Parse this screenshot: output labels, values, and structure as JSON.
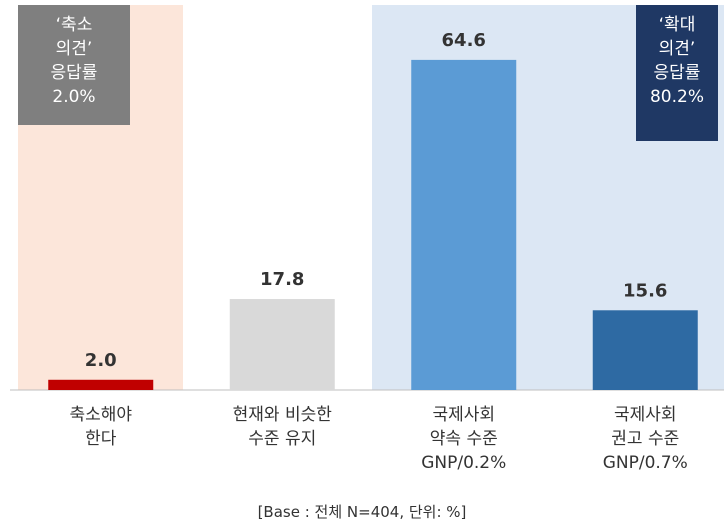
{
  "chart_data": {
    "type": "bar",
    "categories": [
      "축소해야\n한다",
      "현재와 비슷한\n수준 유지",
      "국제사회\n약속 수준\nGNP/0.2%",
      "국제사회\n권고 수준\nGNP/0.7%"
    ],
    "values": [
      2.0,
      17.8,
      64.6,
      15.6
    ],
    "value_labels": [
      "2.0",
      "17.8",
      "64.6",
      "15.6"
    ],
    "colors": [
      "#c00000",
      "#d9d9d9",
      "#5b9bd5",
      "#2e6aa3"
    ],
    "ylim": [
      0,
      70
    ],
    "annotations": [
      "‘축소\n의견’\n응답률\n2.0%",
      "‘확대\n의견’\n응답률\n80.2%"
    ],
    "footnote": "[Base : 전체 N=404, 단위: %]"
  }
}
